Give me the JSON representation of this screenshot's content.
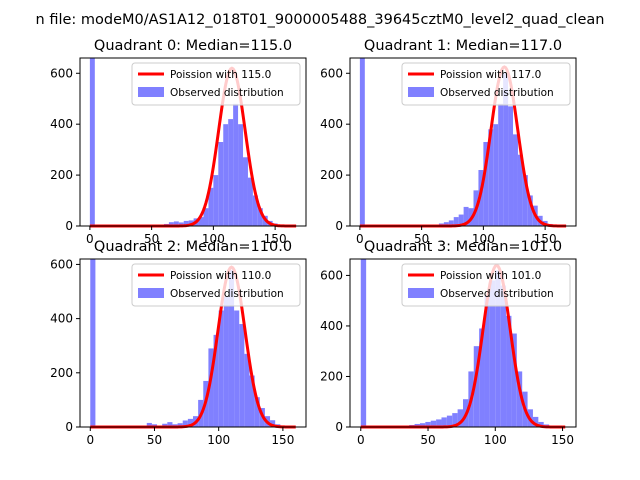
{
  "suptitle": "n file: modeM0/AS1A12_018T01_9000005488_39645cztM0_level2_quad_clean",
  "colors": {
    "poisson": "#ff0000",
    "observed": "#8080ff",
    "axis": "#000000"
  },
  "chart_data": [
    {
      "type": "bar",
      "title": "Quadrant 0: Median=115.0",
      "xlim": [
        -8,
        175
      ],
      "ylim": [
        0,
        660
      ],
      "xticks": [
        0,
        50,
        100,
        150
      ],
      "yticks": [
        0,
        200,
        400,
        600
      ],
      "bin_width": 4,
      "hist_x": [
        0,
        48,
        52,
        56,
        60,
        64,
        68,
        72,
        76,
        80,
        84,
        88,
        92,
        96,
        100,
        104,
        108,
        112,
        116,
        120,
        124,
        128,
        132,
        136,
        140,
        144,
        148
      ],
      "hist_y": [
        660,
        2,
        4,
        3,
        8,
        15,
        18,
        14,
        20,
        22,
        30,
        35,
        70,
        150,
        200,
        330,
        400,
        420,
        480,
        400,
        270,
        190,
        120,
        70,
        40,
        20,
        10
      ],
      "poisson_mean": 115,
      "poisson_peak": 620,
      "legend": [
        "Poission with 115.0",
        "Observed distribution"
      ],
      "legend_position": "top-right"
    },
    {
      "type": "bar",
      "title": "Quadrant 1: Median=117.0",
      "xlim": [
        -8,
        175
      ],
      "ylim": [
        0,
        660
      ],
      "xticks": [
        0,
        50,
        100,
        150
      ],
      "yticks": [
        0,
        200,
        400,
        600
      ],
      "bin_width": 4,
      "hist_x": [
        0,
        56,
        60,
        64,
        68,
        72,
        76,
        80,
        84,
        88,
        92,
        96,
        100,
        104,
        108,
        112,
        116,
        120,
        124,
        128,
        132,
        136,
        140,
        144,
        148,
        152
      ],
      "hist_y": [
        660,
        3,
        5,
        10,
        15,
        22,
        35,
        45,
        75,
        70,
        140,
        220,
        330,
        380,
        400,
        480,
        600,
        470,
        360,
        280,
        200,
        120,
        80,
        40,
        20,
        8
      ],
      "poisson_mean": 117,
      "poisson_peak": 625,
      "legend": [
        "Poission with 117.0",
        "Observed distribution"
      ],
      "legend_position": "top-right"
    },
    {
      "type": "bar",
      "title": "Quadrant 2: Median=110.0",
      "xlim": [
        -8,
        168
      ],
      "ylim": [
        0,
        620
      ],
      "xticks": [
        0,
        50,
        100,
        150
      ],
      "yticks": [
        0,
        200,
        400,
        600
      ],
      "bin_width": 4,
      "hist_x": [
        0,
        44,
        48,
        56,
        60,
        64,
        68,
        72,
        76,
        80,
        84,
        88,
        92,
        96,
        100,
        104,
        108,
        112,
        116,
        120,
        124,
        128,
        132,
        136,
        140,
        144
      ],
      "hist_y": [
        620,
        15,
        10,
        12,
        18,
        10,
        14,
        24,
        30,
        40,
        100,
        170,
        290,
        340,
        430,
        480,
        580,
        430,
        380,
        270,
        190,
        110,
        70,
        40,
        25,
        10
      ],
      "poisson_mean": 110,
      "poisson_peak": 590,
      "legend": [
        "Poission with 110.0",
        "Observed distribution"
      ],
      "legend_position": "top-right"
    },
    {
      "type": "bar",
      "title": "Quadrant 3: Median=101.0",
      "xlim": [
        -8,
        160
      ],
      "ylim": [
        0,
        665
      ],
      "xticks": [
        0,
        50,
        100,
        150
      ],
      "yticks": [
        0,
        200,
        400,
        600
      ],
      "bin_width": 4,
      "hist_x": [
        0,
        36,
        40,
        44,
        48,
        52,
        56,
        60,
        64,
        68,
        72,
        76,
        80,
        84,
        88,
        92,
        96,
        100,
        104,
        108,
        112,
        116,
        120,
        124,
        128,
        132,
        136,
        140
      ],
      "hist_y": [
        665,
        8,
        12,
        15,
        20,
        25,
        30,
        38,
        45,
        55,
        70,
        110,
        220,
        320,
        390,
        520,
        580,
        620,
        560,
        440,
        370,
        220,
        140,
        70,
        40,
        20,
        10,
        5
      ],
      "poisson_mean": 101,
      "poisson_peak": 640,
      "legend": [
        "Poission with 101.0",
        "Observed distribution"
      ],
      "legend_position": "top-right"
    }
  ]
}
